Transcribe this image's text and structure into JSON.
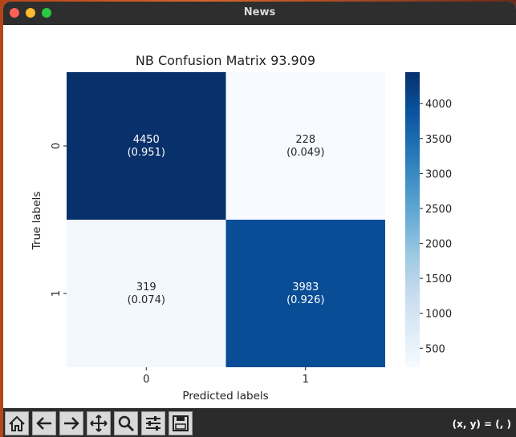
{
  "window": {
    "title": "News"
  },
  "toolbar": {
    "buttons": [
      {
        "icon": "home-icon"
      },
      {
        "icon": "back-arrow-icon"
      },
      {
        "icon": "forward-arrow-icon"
      },
      {
        "icon": "pan-move-icon"
      },
      {
        "icon": "zoom-magnifier-icon"
      },
      {
        "icon": "configure-subplots-icon"
      },
      {
        "icon": "save-disk-icon"
      }
    ],
    "coords": "(x, y) = (, )"
  },
  "chart_data": {
    "type": "heatmap",
    "title": "NB Confusion Matrix 93.909",
    "xlabel": "Predicted labels",
    "ylabel": "True labels",
    "x_categories": [
      "0",
      "1"
    ],
    "y_categories": [
      "0",
      "1"
    ],
    "values": [
      [
        4450,
        228
      ],
      [
        319,
        3983
      ]
    ],
    "fractions": [
      [
        "0.951",
        "0.049"
      ],
      [
        "0.074",
        "0.926"
      ]
    ],
    "colorbar": {
      "ticks": [
        500,
        1000,
        1500,
        2000,
        2500,
        3000,
        3500,
        4000
      ],
      "vmin": 228,
      "vmax": 4450,
      "colormap": "Blues"
    }
  }
}
